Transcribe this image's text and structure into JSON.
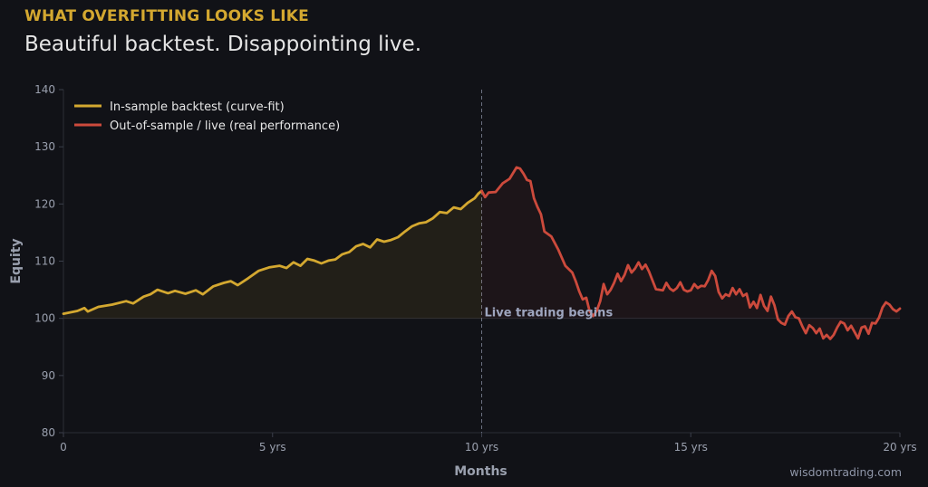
{
  "header": {
    "kicker": "WHAT OVERFITTING LOOKS LIKE",
    "headline": "Beautiful backtest. Disappointing live."
  },
  "footer": {
    "credit": "wisdomtrading.com"
  },
  "colors": {
    "in_sample": "#d4a830",
    "out_of_sample": "#cc4a3c",
    "background": "#111217"
  },
  "chart_data": {
    "type": "line",
    "xlabel": "Months",
    "ylabel": "Equity",
    "xlim": [
      0,
      240
    ],
    "ylim": [
      80,
      140
    ],
    "grid": false,
    "legend_position": "top-left",
    "x_ticks": [
      {
        "value": 0,
        "label": "0"
      },
      {
        "value": 60,
        "label": "5 yrs"
      },
      {
        "value": 120,
        "label": "10 yrs"
      },
      {
        "value": 180,
        "label": "15 yrs"
      },
      {
        "value": 240,
        "label": "20 yrs"
      }
    ],
    "y_ticks": [
      {
        "value": 80,
        "label": "80"
      },
      {
        "value": 90,
        "label": "90"
      },
      {
        "value": 100,
        "label": "100"
      },
      {
        "value": 110,
        "label": "110"
      },
      {
        "value": 120,
        "label": "120"
      },
      {
        "value": 130,
        "label": "130"
      },
      {
        "value": 140,
        "label": "140"
      }
    ],
    "baseline": 100,
    "split_x": 120,
    "annotation": {
      "text": "Live trading begins",
      "x": 120,
      "y": 100
    },
    "series": [
      {
        "name": "In-sample backtest (curve-fit)",
        "color": "#d4a830",
        "points": [
          [
            0,
            100.8
          ],
          [
            4,
            101.3
          ],
          [
            6,
            101.8
          ],
          [
            7,
            101.2
          ],
          [
            10,
            102
          ],
          [
            14,
            102.4
          ],
          [
            18,
            103
          ],
          [
            20,
            102.6
          ],
          [
            23,
            103.8
          ],
          [
            25,
            104.2
          ],
          [
            27,
            105
          ],
          [
            30,
            104.4
          ],
          [
            32,
            104.8
          ],
          [
            35,
            104.3
          ],
          [
            38,
            104.9
          ],
          [
            40,
            104.2
          ],
          [
            43,
            105.6
          ],
          [
            46,
            106.2
          ],
          [
            48,
            106.5
          ],
          [
            50,
            105.8
          ],
          [
            53,
            107
          ],
          [
            56,
            108.3
          ],
          [
            59,
            108.9
          ],
          [
            62,
            109.2
          ],
          [
            64,
            108.8
          ],
          [
            66,
            109.8
          ],
          [
            68,
            109.2
          ],
          [
            70,
            110.4
          ],
          [
            72,
            110.1
          ],
          [
            74,
            109.6
          ],
          [
            76,
            110.1
          ],
          [
            78,
            110.3
          ],
          [
            80,
            111.2
          ],
          [
            82,
            111.6
          ],
          [
            84,
            112.6
          ],
          [
            86,
            113
          ],
          [
            88,
            112.4
          ],
          [
            90,
            113.8
          ],
          [
            92,
            113.4
          ],
          [
            94,
            113.7
          ],
          [
            96,
            114.2
          ],
          [
            98,
            115.2
          ],
          [
            100,
            116.1
          ],
          [
            102,
            116.6
          ],
          [
            104,
            116.8
          ],
          [
            106,
            117.5
          ],
          [
            108,
            118.6
          ],
          [
            110,
            118.4
          ],
          [
            112,
            119.4
          ],
          [
            114,
            119.1
          ],
          [
            116,
            120.2
          ],
          [
            118,
            121
          ],
          [
            119,
            121.8
          ],
          [
            120,
            122.3
          ]
        ]
      },
      {
        "name": "Out-of-sample / live (real performance)",
        "color": "#cc4a3c",
        "points": [
          [
            120,
            122.3
          ],
          [
            121,
            121.2
          ],
          [
            122,
            122
          ],
          [
            124,
            122.1
          ],
          [
            126,
            123.6
          ],
          [
            128,
            124.4
          ],
          [
            130,
            126.4
          ],
          [
            131,
            126.2
          ],
          [
            132,
            125.3
          ],
          [
            133,
            124.2
          ],
          [
            134,
            124
          ],
          [
            135,
            121
          ],
          [
            136,
            119.5
          ],
          [
            137,
            118.2
          ],
          [
            138,
            115.2
          ],
          [
            140,
            114.3
          ],
          [
            142,
            112
          ],
          [
            144,
            109.2
          ],
          [
            146,
            108
          ],
          [
            147,
            106.5
          ],
          [
            148,
            104.7
          ],
          [
            149,
            103.3
          ],
          [
            150,
            103.6
          ],
          [
            151,
            101.2
          ],
          [
            152,
            100.4
          ],
          [
            153,
            101.3
          ],
          [
            154,
            103
          ],
          [
            155,
            106
          ],
          [
            156,
            104.2
          ],
          [
            157,
            105
          ],
          [
            158,
            106.2
          ],
          [
            159,
            107.8
          ],
          [
            160,
            106.5
          ],
          [
            161,
            107.6
          ],
          [
            162,
            109.3
          ],
          [
            163,
            108
          ],
          [
            164,
            108.7
          ],
          [
            165,
            109.8
          ],
          [
            166,
            108.6
          ],
          [
            167,
            109.4
          ],
          [
            168,
            108.2
          ],
          [
            170,
            105.1
          ],
          [
            172,
            104.9
          ],
          [
            173,
            106.2
          ],
          [
            174,
            105.2
          ],
          [
            175,
            104.8
          ],
          [
            176,
            105.3
          ],
          [
            177,
            106.3
          ],
          [
            178,
            105
          ],
          [
            179,
            104.7
          ],
          [
            180,
            104.9
          ],
          [
            181,
            106
          ],
          [
            182,
            105.3
          ],
          [
            183,
            105.7
          ],
          [
            184,
            105.6
          ],
          [
            185,
            106.7
          ],
          [
            186,
            108.3
          ],
          [
            187,
            107.4
          ],
          [
            188,
            104.6
          ],
          [
            189,
            103.5
          ],
          [
            190,
            104.2
          ],
          [
            191,
            103.9
          ],
          [
            192,
            105.3
          ],
          [
            193,
            104.2
          ],
          [
            194,
            105.1
          ],
          [
            195,
            103.9
          ],
          [
            196,
            104.3
          ],
          [
            197,
            101.9
          ],
          [
            198,
            102.9
          ],
          [
            199,
            101.8
          ],
          [
            200,
            104.1
          ],
          [
            201,
            102.2
          ],
          [
            202,
            101.3
          ],
          [
            203,
            103.8
          ],
          [
            204,
            102.3
          ],
          [
            205,
            99.8
          ],
          [
            206,
            99.2
          ],
          [
            207,
            98.9
          ],
          [
            208,
            100.4
          ],
          [
            209,
            101.2
          ],
          [
            210,
            100.2
          ],
          [
            211,
            100
          ],
          [
            212,
            98.6
          ],
          [
            213,
            97.4
          ],
          [
            214,
            98.8
          ],
          [
            215,
            98.3
          ],
          [
            216,
            97.4
          ],
          [
            217,
            98.2
          ],
          [
            218,
            96.5
          ],
          [
            219,
            97.1
          ],
          [
            220,
            96.4
          ],
          [
            221,
            97.1
          ],
          [
            222,
            98.4
          ],
          [
            223,
            99.4
          ],
          [
            224,
            99.1
          ],
          [
            225,
            97.9
          ],
          [
            226,
            98.7
          ],
          [
            227,
            97.6
          ],
          [
            228,
            96.5
          ],
          [
            229,
            98.4
          ],
          [
            230,
            98.6
          ],
          [
            231,
            97.3
          ],
          [
            232,
            99.2
          ],
          [
            233,
            99.1
          ],
          [
            234,
            100.1
          ],
          [
            235,
            101.9
          ],
          [
            236,
            102.8
          ],
          [
            237,
            102.4
          ],
          [
            238,
            101.6
          ],
          [
            239,
            101.2
          ],
          [
            240,
            101.7
          ]
        ]
      }
    ]
  }
}
